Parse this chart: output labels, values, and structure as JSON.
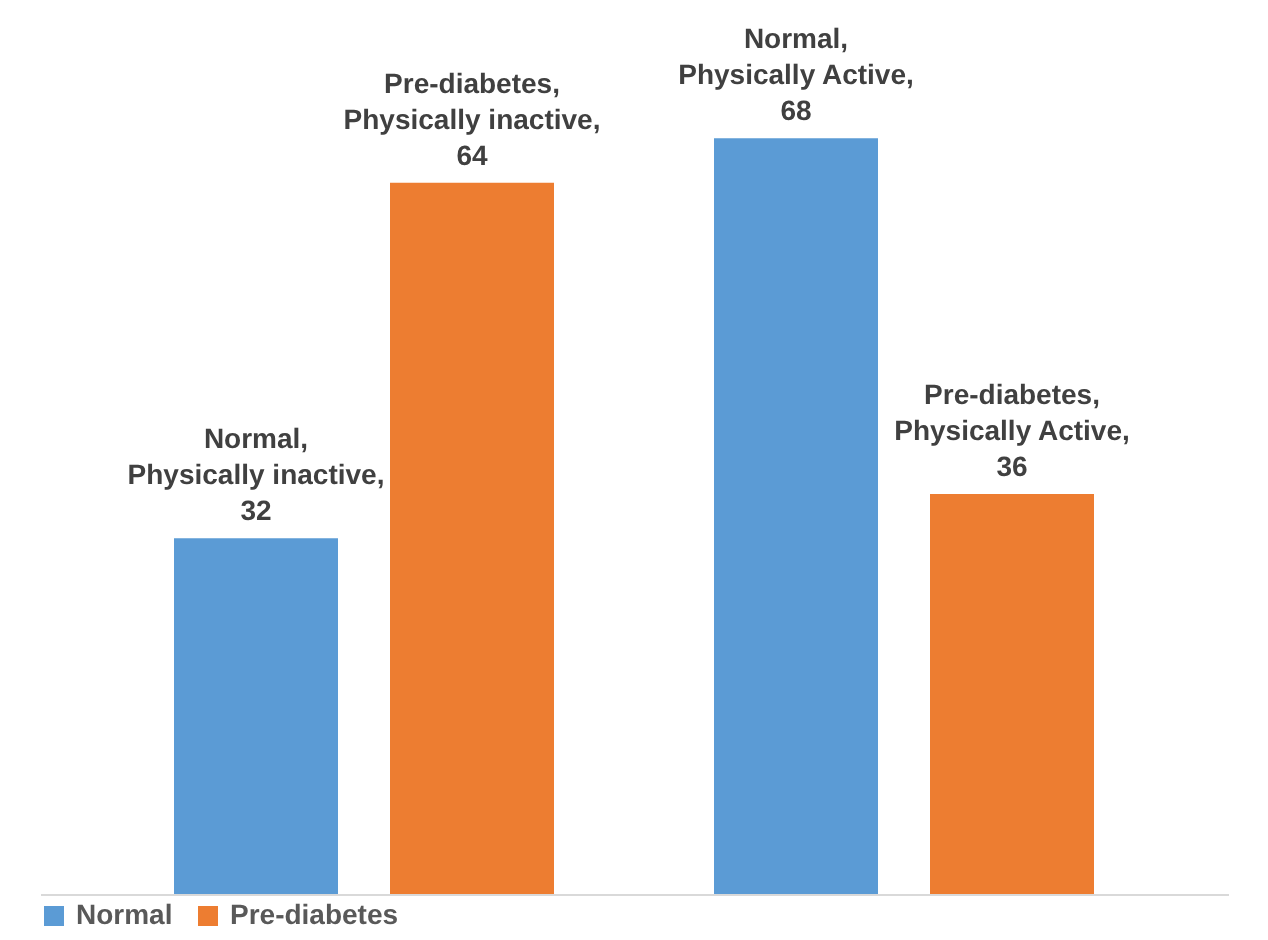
{
  "chart_data": {
    "type": "bar",
    "categories": [
      null,
      null
    ],
    "series": [
      {
        "name": "Normal",
        "color": "#5b9bd5",
        "values": [
          32,
          68
        ],
        "value_labels": [
          "Normal, Physically inactive, 32",
          "Normal, Physically Active, 68"
        ]
      },
      {
        "name": "Pre-diabetes",
        "color": "#ed7d31",
        "values": [
          64,
          36
        ],
        "value_labels": [
          "Pre-diabetes, Physically inactive, 64",
          "Pre-diabetes, Physically Active, 36"
        ]
      }
    ],
    "tick_labels": false,
    "legend": "bottom"
  }
}
